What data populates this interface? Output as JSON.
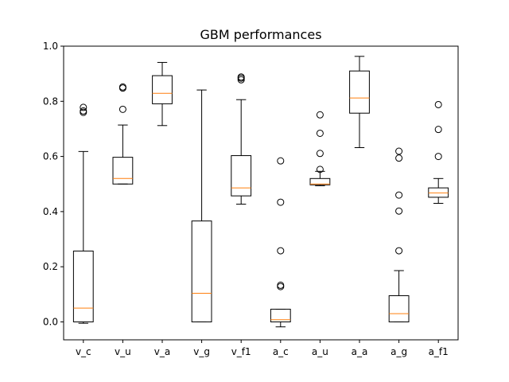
{
  "chart_data": {
    "type": "box",
    "title": "GBM performances",
    "xlabel": "",
    "ylabel": "",
    "ylim": [
      -0.065,
      1.0
    ],
    "yticks": [
      0.0,
      0.2,
      0.4,
      0.6,
      0.8,
      1.0
    ],
    "ytick_labels": [
      "0.0",
      "0.2",
      "0.4",
      "0.6",
      "0.8",
      "1.0"
    ],
    "grid": false,
    "box_color": "#000000",
    "median_color": "#ff7f0e",
    "categories": [
      "v_c",
      "v_u",
      "v_a",
      "v_g",
      "v_f1",
      "a_c",
      "a_u",
      "a_a",
      "a_g",
      "a_f1"
    ],
    "boxes": [
      {
        "whisker_low": -0.005,
        "q1": 0.0,
        "median": 0.05,
        "q3": 0.257,
        "whisker_high": 0.618,
        "outliers": [
          0.76,
          0.765,
          0.778
        ]
      },
      {
        "whisker_low": 0.5,
        "q1": 0.5,
        "median": 0.52,
        "q3": 0.597,
        "whisker_high": 0.714,
        "outliers": [
          0.771,
          0.848,
          0.852
        ]
      },
      {
        "whisker_low": 0.712,
        "q1": 0.791,
        "median": 0.829,
        "q3": 0.893,
        "whisker_high": 0.941,
        "outliers": []
      },
      {
        "whisker_low": 0.0,
        "q1": 0.0,
        "median": 0.104,
        "q3": 0.366,
        "whisker_high": 0.841,
        "outliers": []
      },
      {
        "whisker_low": 0.427,
        "q1": 0.457,
        "median": 0.486,
        "q3": 0.603,
        "whisker_high": 0.806,
        "outliers": [
          0.878,
          0.884,
          0.888
        ]
      },
      {
        "whisker_low": -0.018,
        "q1": 0.0,
        "median": 0.008,
        "q3": 0.046,
        "whisker_high": 0.046,
        "outliers": [
          0.128,
          0.133,
          0.258,
          0.434,
          0.584
        ]
      },
      {
        "whisker_low": 0.494,
        "q1": 0.497,
        "median": 0.5,
        "q3": 0.52,
        "whisker_high": 0.546,
        "outliers": [
          0.553,
          0.611,
          0.684,
          0.751
        ]
      },
      {
        "whisker_low": 0.632,
        "q1": 0.757,
        "median": 0.812,
        "q3": 0.91,
        "whisker_high": 0.963,
        "outliers": []
      },
      {
        "whisker_low": 0.0,
        "q1": 0.0,
        "median": 0.03,
        "q3": 0.095,
        "whisker_high": 0.186,
        "outliers": [
          0.258,
          0.402,
          0.46,
          0.594,
          0.619
        ]
      },
      {
        "whisker_low": 0.43,
        "q1": 0.452,
        "median": 0.468,
        "q3": 0.486,
        "whisker_high": 0.52,
        "outliers": [
          0.6,
          0.698,
          0.788
        ]
      }
    ]
  }
}
